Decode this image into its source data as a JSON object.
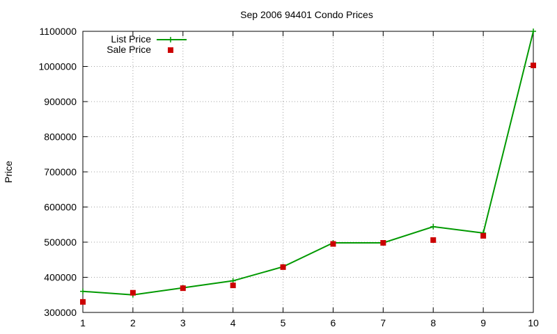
{
  "chart_data": {
    "type": "line",
    "title": "Sep 2006 94401 Condo Prices",
    "xlabel": "",
    "ylabel": "Price",
    "x": [
      1,
      2,
      3,
      4,
      5,
      6,
      7,
      8,
      9,
      10
    ],
    "xlim": [
      1,
      10
    ],
    "ylim": [
      300000,
      1100000
    ],
    "xticks": [
      "1",
      "2",
      "3",
      "4",
      "5",
      "6",
      "7",
      "8",
      "9",
      "10"
    ],
    "yticks": [
      "300000",
      "400000",
      "500000",
      "600000",
      "700000",
      "800000",
      "900000",
      "1000000",
      "1100000"
    ],
    "grid": true,
    "legend_position": "top-left",
    "series": [
      {
        "name": "List Price",
        "style": "line-with-plus-markers",
        "color": "#009900",
        "values": [
          360000,
          350000,
          370000,
          390000,
          430000,
          498000,
          498000,
          544000,
          526000,
          1100000
        ]
      },
      {
        "name": "Sale Price",
        "style": "square-markers",
        "color": "#cc0000",
        "values": [
          330000,
          356000,
          369000,
          377000,
          429000,
          495000,
          498000,
          506000,
          518000,
          1003000
        ]
      }
    ]
  }
}
